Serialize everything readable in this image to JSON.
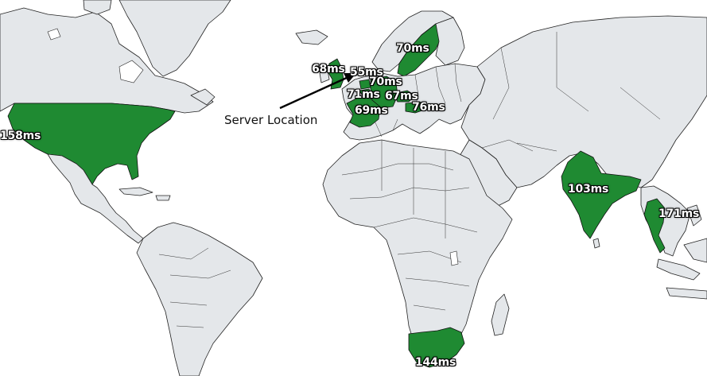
{
  "annotation": {
    "server_label": "Server Location",
    "arrow_target": "Netherlands"
  },
  "colors": {
    "highlight": "#1f8a32",
    "land": "#e4e7ea",
    "ocean": "#ffffff",
    "border": "#222222",
    "label_text": "#ffffff",
    "label_outline": "#000000"
  },
  "latencies": [
    {
      "region": "United States",
      "label": "158ms"
    },
    {
      "region": "United Kingdom",
      "label": "68ms"
    },
    {
      "region": "Netherlands",
      "label": "55ms"
    },
    {
      "region": "Germany",
      "label": "70ms"
    },
    {
      "region": "Belgium",
      "label": "71ms"
    },
    {
      "region": "Czech Republic",
      "label": "67ms"
    },
    {
      "region": "France",
      "label": "69ms"
    },
    {
      "region": "Hungary",
      "label": "76ms"
    },
    {
      "region": "Sweden",
      "label": "70ms"
    },
    {
      "region": "India",
      "label": "103ms"
    },
    {
      "region": "Thailand",
      "label": "171ms"
    },
    {
      "region": "South Africa",
      "label": "144ms"
    }
  ]
}
